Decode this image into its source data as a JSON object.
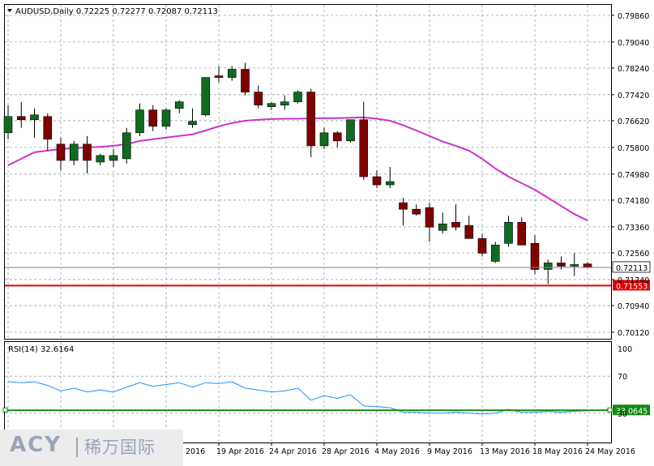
{
  "chart_data": {
    "type": "candlestick",
    "symbol_header": "AUDUSD,Daily  0.72225 0.72277 0.72087 0.72113",
    "price_axis": {
      "ylim": [
        0.6992,
        0.8018
      ],
      "ticks": [
        "0.79860",
        "0.79040",
        "0.78240",
        "0.77420",
        "0.76620",
        "0.75800",
        "0.74980",
        "0.74180",
        "0.73360",
        "0.72560",
        "0.71740",
        "0.70940",
        "0.70120"
      ],
      "tick_values": [
        0.7986,
        0.7904,
        0.7824,
        0.7742,
        0.7662,
        0.758,
        0.7498,
        0.7418,
        0.7336,
        0.7256,
        0.7174,
        0.7094,
        0.7012
      ]
    },
    "current_price_label": "0.72113",
    "current_price": 0.72113,
    "support_level_label": "0.71553",
    "support_level": 0.71553,
    "bull_color": "#0f6b1f",
    "bear_color": "#800000",
    "ma_color": "#cc33cc",
    "support_color": "#e00000",
    "candles": [
      {
        "o": 0.7625,
        "h": 0.771,
        "l": 0.7605,
        "c": 0.7675
      },
      {
        "o": 0.7675,
        "h": 0.772,
        "l": 0.764,
        "c": 0.7665
      },
      {
        "o": 0.7665,
        "h": 0.77,
        "l": 0.761,
        "c": 0.768
      },
      {
        "o": 0.7675,
        "h": 0.7685,
        "l": 0.757,
        "c": 0.7605
      },
      {
        "o": 0.759,
        "h": 0.761,
        "l": 0.751,
        "c": 0.754
      },
      {
        "o": 0.754,
        "h": 0.76,
        "l": 0.7525,
        "c": 0.759
      },
      {
        "o": 0.759,
        "h": 0.7615,
        "l": 0.75,
        "c": 0.754
      },
      {
        "o": 0.7535,
        "h": 0.756,
        "l": 0.7525,
        "c": 0.7555
      },
      {
        "o": 0.754,
        "h": 0.7575,
        "l": 0.752,
        "c": 0.7555
      },
      {
        "o": 0.7545,
        "h": 0.764,
        "l": 0.753,
        "c": 0.7625
      },
      {
        "o": 0.7625,
        "h": 0.7715,
        "l": 0.7615,
        "c": 0.7695
      },
      {
        "o": 0.7695,
        "h": 0.771,
        "l": 0.763,
        "c": 0.7645
      },
      {
        "o": 0.7645,
        "h": 0.77,
        "l": 0.7635,
        "c": 0.7695
      },
      {
        "o": 0.77,
        "h": 0.7725,
        "l": 0.7685,
        "c": 0.772
      },
      {
        "o": 0.765,
        "h": 0.77,
        "l": 0.764,
        "c": 0.766
      },
      {
        "o": 0.768,
        "h": 0.7795,
        "l": 0.7675,
        "c": 0.7795
      },
      {
        "o": 0.78,
        "h": 0.783,
        "l": 0.778,
        "c": 0.7795
      },
      {
        "o": 0.7795,
        "h": 0.783,
        "l": 0.7785,
        "c": 0.782
      },
      {
        "o": 0.782,
        "h": 0.784,
        "l": 0.774,
        "c": 0.775
      },
      {
        "o": 0.775,
        "h": 0.777,
        "l": 0.77,
        "c": 0.771
      },
      {
        "o": 0.7705,
        "h": 0.772,
        "l": 0.7695,
        "c": 0.7715
      },
      {
        "o": 0.771,
        "h": 0.774,
        "l": 0.7695,
        "c": 0.772
      },
      {
        "o": 0.772,
        "h": 0.7755,
        "l": 0.7715,
        "c": 0.775
      },
      {
        "o": 0.775,
        "h": 0.776,
        "l": 0.755,
        "c": 0.7585
      },
      {
        "o": 0.7585,
        "h": 0.764,
        "l": 0.7575,
        "c": 0.7625
      },
      {
        "o": 0.7625,
        "h": 0.763,
        "l": 0.758,
        "c": 0.76
      },
      {
        "o": 0.76,
        "h": 0.7665,
        "l": 0.7595,
        "c": 0.7665
      },
      {
        "o": 0.7665,
        "h": 0.772,
        "l": 0.748,
        "c": 0.749
      },
      {
        "o": 0.749,
        "h": 0.751,
        "l": 0.7455,
        "c": 0.7465
      },
      {
        "o": 0.7465,
        "h": 0.752,
        "l": 0.7455,
        "c": 0.7475
      },
      {
        "o": 0.741,
        "h": 0.7425,
        "l": 0.734,
        "c": 0.739
      },
      {
        "o": 0.739,
        "h": 0.7405,
        "l": 0.737,
        "c": 0.7375
      },
      {
        "o": 0.7395,
        "h": 0.741,
        "l": 0.729,
        "c": 0.7335
      },
      {
        "o": 0.7325,
        "h": 0.738,
        "l": 0.7315,
        "c": 0.7345
      },
      {
        "o": 0.735,
        "h": 0.7405,
        "l": 0.7325,
        "c": 0.7335
      },
      {
        "o": 0.734,
        "h": 0.737,
        "l": 0.73,
        "c": 0.73
      },
      {
        "o": 0.73,
        "h": 0.7315,
        "l": 0.7245,
        "c": 0.7255
      },
      {
        "o": 0.723,
        "h": 0.729,
        "l": 0.7225,
        "c": 0.728
      },
      {
        "o": 0.7285,
        "h": 0.737,
        "l": 0.7275,
        "c": 0.735
      },
      {
        "o": 0.735,
        "h": 0.7365,
        "l": 0.728,
        "c": 0.728
      },
      {
        "o": 0.7285,
        "h": 0.731,
        "l": 0.719,
        "c": 0.7205
      },
      {
        "o": 0.7205,
        "h": 0.7235,
        "l": 0.716,
        "c": 0.7225
      },
      {
        "o": 0.7225,
        "h": 0.7245,
        "l": 0.7205,
        "c": 0.7215
      },
      {
        "o": 0.7215,
        "h": 0.7255,
        "l": 0.7185,
        "c": 0.722
      },
      {
        "o": 0.7222,
        "h": 0.7228,
        "l": 0.7209,
        "c": 0.7211
      }
    ],
    "moving_average": [
      0.7525,
      0.7545,
      0.7565,
      0.757,
      0.7575,
      0.7578,
      0.758,
      0.7582,
      0.7585,
      0.759,
      0.76,
      0.7605,
      0.761,
      0.7615,
      0.762,
      0.7632,
      0.7645,
      0.7655,
      0.7662,
      0.7665,
      0.7667,
      0.7668,
      0.7668,
      0.7669,
      0.767,
      0.767,
      0.7671,
      0.7672,
      0.7668,
      0.7662,
      0.7648,
      0.7632,
      0.7615,
      0.7598,
      0.7585,
      0.757,
      0.7545,
      0.7515,
      0.749,
      0.747,
      0.745,
      0.7425,
      0.74,
      0.7375,
      0.7355
    ],
    "rsi": {
      "label": "RSI(14) 32.6164",
      "ylim": [
        0,
        100
      ],
      "ticks": [
        "100",
        "70",
        "30"
      ],
      "tick_values": [
        100,
        70,
        30
      ],
      "level_label": "33.0645",
      "level": 33.0645,
      "line_color": "#1e90ff",
      "level_color": "#118811",
      "values": [
        64,
        63,
        64,
        60,
        54,
        57,
        53,
        55,
        53,
        58,
        63,
        59,
        61,
        63,
        58,
        63,
        62,
        64,
        57,
        55,
        53,
        54,
        57,
        44,
        49,
        46,
        50,
        38,
        37,
        36,
        31,
        31,
        30,
        30,
        31,
        30,
        29,
        30,
        34,
        31,
        31,
        32,
        31,
        32,
        32.6
      ]
    },
    "x_axis": {
      "labels": [
        {
          "text": "19 Apr 2016",
          "i": 16
        },
        {
          "text": "24 Apr 2016",
          "i": 20
        },
        {
          "text": "28 Apr 2016",
          "i": 24
        },
        {
          "text": "4 May 2016",
          "i": 28
        },
        {
          "text": "9 May 2016",
          "i": 32
        },
        {
          "text": "13 May 2016",
          "i": 36
        },
        {
          "text": "18 May 2016",
          "i": 40
        },
        {
          "text": "24 May 2016",
          "i": 44
        }
      ],
      "partial_left_label": "2016"
    }
  },
  "watermark": {
    "logo": "ACY",
    "chinese": "稀万国际"
  }
}
